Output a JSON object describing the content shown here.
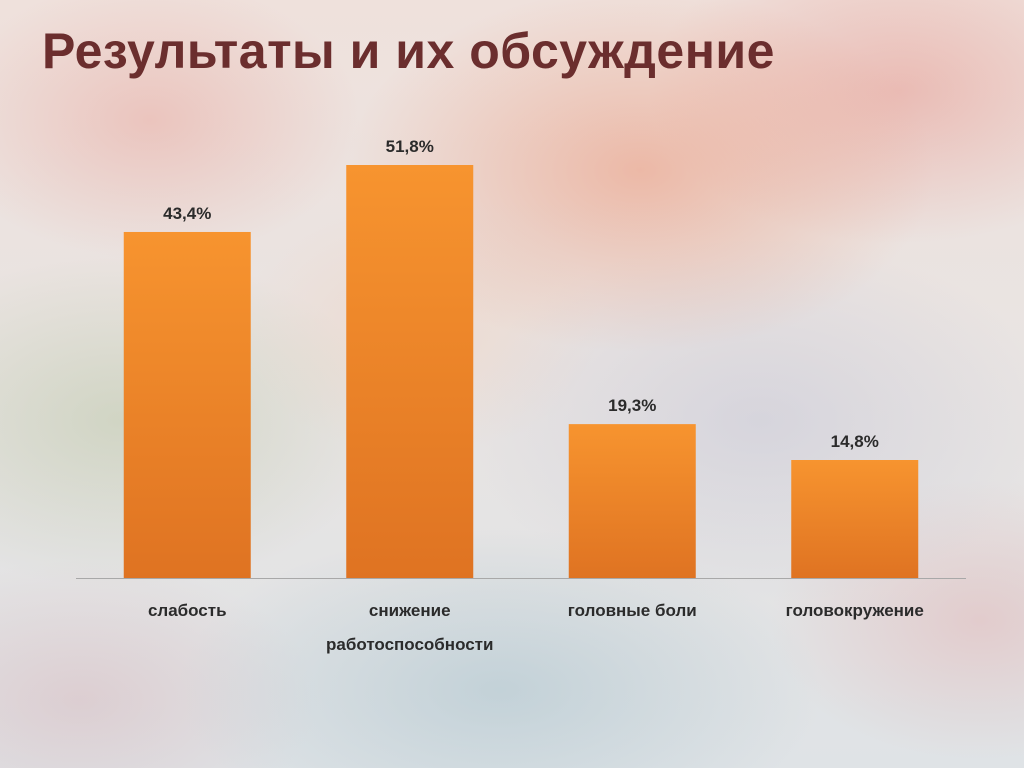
{
  "slide": {
    "title": "Результаты и их обсуждение"
  },
  "colors": {
    "bar_top": "#f7942f",
    "bar_bottom": "#df7322",
    "axis": "#a8a8a8",
    "title": "#6b2e2e"
  },
  "chart_data": {
    "type": "bar",
    "title": "",
    "xlabel": "",
    "ylabel": "",
    "categories": [
      [
        "слабость"
      ],
      [
        "снижение",
        "работоспособности"
      ],
      [
        "головные боли"
      ],
      [
        "головокружение"
      ]
    ],
    "values": [
      43.4,
      51.8,
      19.3,
      14.8
    ],
    "data_labels": [
      "43,4%",
      "51,8%",
      "19,3%",
      "14,8%"
    ],
    "ylim": [
      0,
      55
    ],
    "grid": false,
    "legend": "none"
  }
}
